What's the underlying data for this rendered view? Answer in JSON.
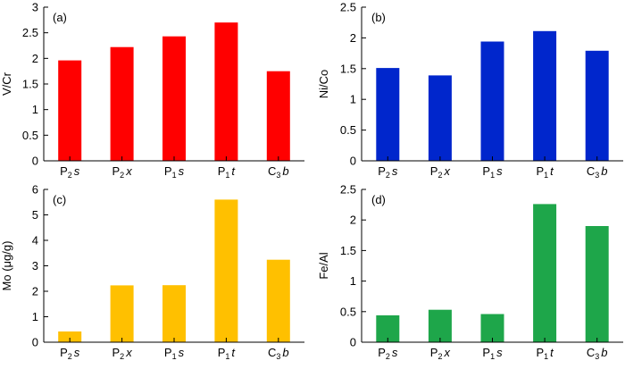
{
  "chart_data": [
    {
      "type": "bar",
      "panel_label": "(a)",
      "ylabel": "V/Cr",
      "color": "#ff0000",
      "ylim": [
        0,
        3
      ],
      "yticks": [
        0,
        0.5,
        1,
        1.5,
        2,
        2.5,
        3
      ],
      "ytick_labels": [
        "0",
        "0.5",
        "1",
        "1.5",
        "2",
        "2.5",
        "3"
      ],
      "categories": [
        {
          "base": "P",
          "sub": "2",
          "suffix": "s"
        },
        {
          "base": "P",
          "sub": "2",
          "suffix": "x"
        },
        {
          "base": "P",
          "sub": "1",
          "suffix": "s"
        },
        {
          "base": "P",
          "sub": "1",
          "suffix": "t"
        },
        {
          "base": "C",
          "sub": "3",
          "suffix": "b"
        }
      ],
      "values": [
        1.96,
        2.22,
        2.43,
        2.7,
        1.75
      ]
    },
    {
      "type": "bar",
      "panel_label": "(b)",
      "ylabel": "Ni/Co",
      "color": "#0026cc",
      "ylim": [
        0,
        2.5
      ],
      "yticks": [
        0,
        0.5,
        1,
        1.5,
        2,
        2.5
      ],
      "ytick_labels": [
        "0",
        "0.5",
        "1",
        "1.5",
        "2",
        "2.5"
      ],
      "categories": [
        {
          "base": "P",
          "sub": "2",
          "suffix": "s"
        },
        {
          "base": "P",
          "sub": "2",
          "suffix": "x"
        },
        {
          "base": "P",
          "sub": "1",
          "suffix": "s"
        },
        {
          "base": "P",
          "sub": "1",
          "suffix": "t"
        },
        {
          "base": "C",
          "sub": "3",
          "suffix": "b"
        }
      ],
      "values": [
        1.51,
        1.39,
        1.94,
        2.11,
        1.79
      ]
    },
    {
      "type": "bar",
      "panel_label": "(c)",
      "ylabel": "Mo (μg/g)",
      "color": "#ffc000",
      "ylim": [
        0,
        6
      ],
      "yticks": [
        0,
        1,
        2,
        3,
        4,
        5,
        6
      ],
      "ytick_labels": [
        "0",
        "1",
        "2",
        "3",
        "4",
        "5",
        "6"
      ],
      "categories": [
        {
          "base": "P",
          "sub": "2",
          "suffix": "s"
        },
        {
          "base": "P",
          "sub": "2",
          "suffix": "x"
        },
        {
          "base": "P",
          "sub": "1",
          "suffix": "s"
        },
        {
          "base": "P",
          "sub": "1",
          "suffix": "t"
        },
        {
          "base": "C",
          "sub": "3",
          "suffix": "b"
        }
      ],
      "values": [
        0.42,
        2.23,
        2.24,
        5.6,
        3.24
      ]
    },
    {
      "type": "bar",
      "panel_label": "(d)",
      "ylabel": "Fe/Al",
      "color": "#1ea64a",
      "ylim": [
        0,
        2.5
      ],
      "yticks": [
        0,
        0.5,
        1,
        1.5,
        2,
        2.5
      ],
      "ytick_labels": [
        "0",
        "0.5",
        "1",
        "1.5",
        "2",
        "2.5"
      ],
      "categories": [
        {
          "base": "P",
          "sub": "2",
          "suffix": "s"
        },
        {
          "base": "P",
          "sub": "2",
          "suffix": "x"
        },
        {
          "base": "P",
          "sub": "1",
          "suffix": "s"
        },
        {
          "base": "P",
          "sub": "1",
          "suffix": "t"
        },
        {
          "base": "C",
          "sub": "3",
          "suffix": "b"
        }
      ],
      "values": [
        0.44,
        0.53,
        0.46,
        2.26,
        1.9
      ]
    }
  ]
}
